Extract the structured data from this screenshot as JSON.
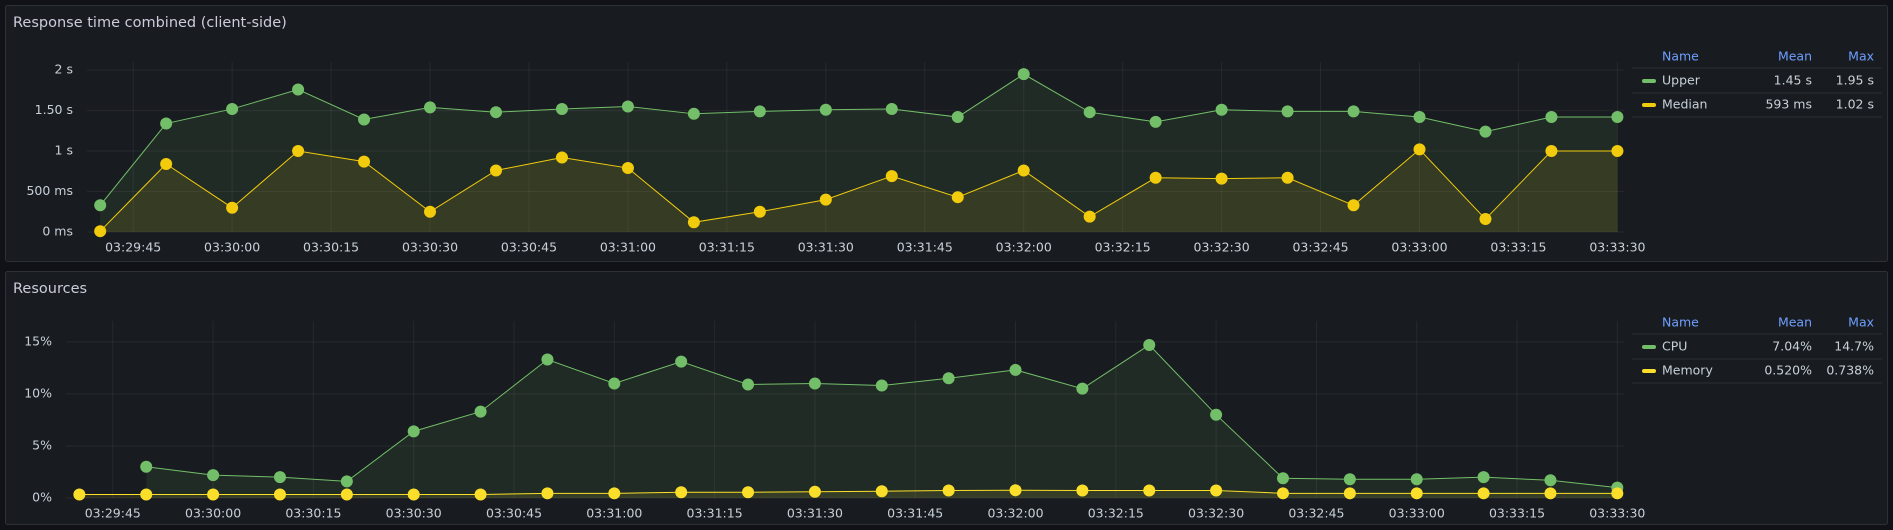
{
  "chart_data": [
    {
      "type": "line",
      "title": "Response time combined (client-side)",
      "x": [
        "03:29:40",
        "03:29:50",
        "03:30:00",
        "03:30:10",
        "03:30:20",
        "03:30:30",
        "03:30:40",
        "03:30:50",
        "03:31:00",
        "03:31:10",
        "03:31:20",
        "03:31:30",
        "03:31:40",
        "03:31:50",
        "03:32:00",
        "03:32:10",
        "03:32:20",
        "03:32:30",
        "03:32:40",
        "03:32:50",
        "03:33:00",
        "03:33:10",
        "03:33:20",
        "03:33:30"
      ],
      "xlim": [
        "03:29:38",
        "03:33:31"
      ],
      "xticks": [
        "03:29:45",
        "03:30:00",
        "03:30:15",
        "03:30:30",
        "03:30:45",
        "03:31:00",
        "03:31:15",
        "03:31:30",
        "03:31:45",
        "03:32:00",
        "03:32:15",
        "03:32:30",
        "03:32:45",
        "03:33:00",
        "03:33:15",
        "03:33:30"
      ],
      "ylim": [
        0,
        2.1
      ],
      "yticks": [
        {
          "value": 0,
          "label": "0 ms"
        },
        {
          "value": 0.5,
          "label": "500 ms"
        },
        {
          "value": 1,
          "label": "1 s"
        },
        {
          "value": 1.5,
          "label": "1.50 s"
        },
        {
          "value": 2,
          "label": "2 s"
        }
      ],
      "grid": true,
      "legend_columns": [
        "Name",
        "Mean",
        "Max"
      ],
      "series": [
        {
          "name": "Upper",
          "color": "#73bf69",
          "values": [
            0.33,
            1.34,
            1.52,
            1.76,
            1.39,
            1.54,
            1.48,
            1.52,
            1.55,
            1.46,
            1.49,
            1.51,
            1.52,
            1.42,
            1.95,
            1.48,
            1.36,
            1.51,
            1.49,
            1.49,
            1.42,
            1.24,
            1.42,
            1.42
          ],
          "stats": [
            {
              "value": 1.45,
              "label": "1.45 s"
            },
            {
              "value": 1.95,
              "label": "1.95 s"
            }
          ]
        },
        {
          "name": "Median",
          "color": "#f2cc0c",
          "values": [
            0.01,
            0.84,
            0.3,
            1.0,
            0.87,
            0.25,
            0.76,
            0.92,
            0.79,
            0.12,
            0.25,
            0.4,
            0.69,
            0.43,
            0.76,
            0.19,
            0.67,
            0.66,
            0.67,
            0.33,
            1.02,
            0.16,
            1.0,
            1.0
          ],
          "stats": [
            {
              "value": 0.593,
              "label": "593 ms"
            },
            {
              "value": 1.02,
              "label": "1.02 s"
            }
          ]
        }
      ]
    },
    {
      "type": "line",
      "title": "Resources",
      "x": [
        "03:29:40",
        "03:29:50",
        "03:30:00",
        "03:30:10",
        "03:30:20",
        "03:30:30",
        "03:30:40",
        "03:30:50",
        "03:31:00",
        "03:31:10",
        "03:31:20",
        "03:31:30",
        "03:31:40",
        "03:31:50",
        "03:32:00",
        "03:32:10",
        "03:32:20",
        "03:32:30",
        "03:32:40",
        "03:32:50",
        "03:33:00",
        "03:33:10",
        "03:33:20",
        "03:33:30"
      ],
      "xlim": [
        "03:29:38",
        "03:33:31"
      ],
      "xticks": [
        "03:29:45",
        "03:30:00",
        "03:30:15",
        "03:30:30",
        "03:30:45",
        "03:31:00",
        "03:31:15",
        "03:31:30",
        "03:31:45",
        "03:32:00",
        "03:32:15",
        "03:32:30",
        "03:32:45",
        "03:33:00",
        "03:33:15",
        "03:33:30"
      ],
      "ylim": [
        0,
        17
      ],
      "yticks": [
        {
          "value": 0,
          "label": "0%"
        },
        {
          "value": 5,
          "label": "5%"
        },
        {
          "value": 10,
          "label": "10%"
        },
        {
          "value": 15,
          "label": "15%"
        }
      ],
      "grid": true,
      "legend_columns": [
        "Name",
        "Mean",
        "Max"
      ],
      "series": [
        {
          "name": "CPU",
          "color": "#73bf69",
          "values": [
            null,
            3.0,
            2.2,
            2.0,
            1.6,
            6.4,
            8.3,
            13.3,
            11.0,
            13.1,
            10.9,
            11.0,
            10.8,
            11.5,
            12.3,
            10.5,
            14.7,
            8.0,
            1.9,
            1.8,
            1.8,
            2.0,
            1.7,
            1.0
          ],
          "stats": [
            {
              "value": 7.04,
              "label": "7.04%"
            },
            {
              "value": 14.7,
              "label": "14.7%"
            }
          ]
        },
        {
          "name": "Memory",
          "color": "#fade2a",
          "values": [
            0.34,
            0.34,
            0.34,
            0.34,
            0.34,
            0.34,
            0.34,
            0.45,
            0.45,
            0.55,
            0.55,
            0.6,
            0.65,
            0.72,
            0.74,
            0.72,
            0.72,
            0.72,
            0.45,
            0.45,
            0.45,
            0.45,
            0.45,
            0.45
          ],
          "stats": [
            {
              "value": 0.52,
              "label": "0.520%"
            },
            {
              "value": 0.738,
              "label": "0.738%"
            }
          ]
        }
      ]
    }
  ]
}
